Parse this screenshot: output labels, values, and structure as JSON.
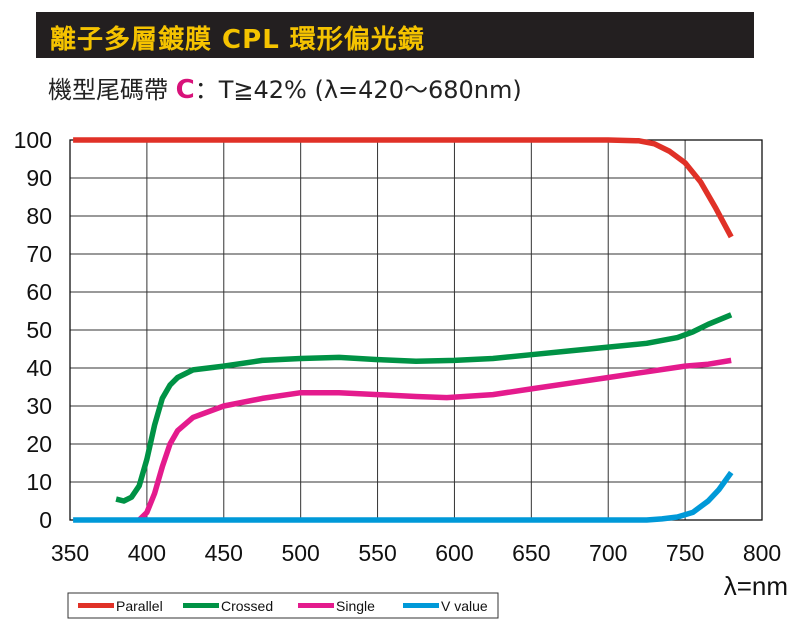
{
  "header": {
    "title": "離子多層鍍膜  CPL 環形偏光鏡"
  },
  "subtitle": {
    "prefix": "機型尾碼帶",
    "code": "C",
    "spec": "：T≧42% (λ=420～680nm)"
  },
  "chart_data": {
    "type": "line",
    "title": "",
    "xlabel": "λ=nm",
    "ylabel": "",
    "xlim": [
      350,
      800
    ],
    "ylim": [
      0,
      100
    ],
    "x_ticks": [
      350,
      400,
      450,
      500,
      550,
      600,
      650,
      700,
      750,
      800
    ],
    "y_ticks": [
      0,
      10,
      20,
      30,
      40,
      50,
      60,
      70,
      80,
      90,
      100
    ],
    "grid": true,
    "legend_position": "bottom-left",
    "series": [
      {
        "name": "Parallel",
        "color": "#e03127",
        "points": [
          [
            352,
            100
          ],
          [
            500,
            100
          ],
          [
            600,
            100
          ],
          [
            700,
            100
          ],
          [
            720,
            99.8
          ],
          [
            730,
            99
          ],
          [
            740,
            97
          ],
          [
            750,
            94
          ],
          [
            760,
            89
          ],
          [
            770,
            82
          ],
          [
            780,
            74.5
          ]
        ]
      },
      {
        "name": "Crossed",
        "color": "#009245",
        "points": [
          [
            380,
            5.5
          ],
          [
            385,
            5
          ],
          [
            390,
            6
          ],
          [
            395,
            9
          ],
          [
            400,
            16
          ],
          [
            405,
            25
          ],
          [
            410,
            32
          ],
          [
            415,
            35.5
          ],
          [
            420,
            37.5
          ],
          [
            430,
            39.5
          ],
          [
            450,
            40.5
          ],
          [
            475,
            42
          ],
          [
            500,
            42.5
          ],
          [
            525,
            42.8
          ],
          [
            550,
            42.2
          ],
          [
            575,
            41.8
          ],
          [
            600,
            42
          ],
          [
            625,
            42.5
          ],
          [
            650,
            43.5
          ],
          [
            675,
            44.5
          ],
          [
            700,
            45.5
          ],
          [
            725,
            46.5
          ],
          [
            745,
            48
          ],
          [
            755,
            49.5
          ],
          [
            765,
            51.5
          ],
          [
            780,
            54
          ]
        ]
      },
      {
        "name": "Single",
        "color": "#e41b8d",
        "points": [
          [
            395,
            0
          ],
          [
            400,
            2
          ],
          [
            405,
            7
          ],
          [
            410,
            14
          ],
          [
            415,
            20
          ],
          [
            420,
            23.5
          ],
          [
            430,
            27
          ],
          [
            450,
            30
          ],
          [
            475,
            32
          ],
          [
            500,
            33.5
          ],
          [
            525,
            33.5
          ],
          [
            550,
            33
          ],
          [
            575,
            32.5
          ],
          [
            595,
            32.2
          ],
          [
            625,
            33
          ],
          [
            650,
            34.5
          ],
          [
            675,
            36
          ],
          [
            700,
            37.5
          ],
          [
            725,
            39
          ],
          [
            750,
            40.5
          ],
          [
            765,
            41
          ],
          [
            780,
            42
          ]
        ]
      },
      {
        "name": "V value",
        "color": "#0099d8",
        "points": [
          [
            352,
            0
          ],
          [
            500,
            0
          ],
          [
            600,
            0
          ],
          [
            700,
            0
          ],
          [
            725,
            0
          ],
          [
            735,
            0.3
          ],
          [
            745,
            0.8
          ],
          [
            755,
            2
          ],
          [
            765,
            5
          ],
          [
            772,
            8
          ],
          [
            780,
            12.5
          ]
        ]
      }
    ]
  }
}
